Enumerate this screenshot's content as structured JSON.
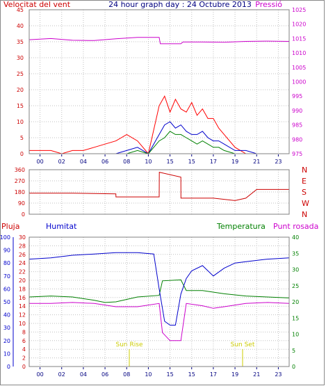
{
  "chart_data": [
    {
      "type": "line",
      "title": "24 hour graph day : 24 Octubre 2013",
      "ylabel_left": "Velocitat del vent",
      "ylabel_right": "Pressió",
      "left_ticks": [
        0,
        5,
        10,
        15,
        20,
        25,
        30,
        35,
        40,
        45
      ],
      "right_ticks": [
        975,
        980,
        985,
        990,
        995,
        1000,
        1005,
        1010,
        1015,
        1020,
        1025
      ],
      "ylim_left": [
        0,
        45
      ],
      "ylim_right": [
        975,
        1025
      ],
      "x_ticks": [
        "00",
        "02",
        "04",
        "06",
        "08",
        "10",
        "15",
        "15",
        "17",
        "19",
        "21",
        "23"
      ],
      "series": [
        {
          "name": "Pressió",
          "color": "#cc00cc",
          "x": [
            0,
            2,
            4,
            6,
            8,
            10,
            12,
            12.1,
            14,
            14.2,
            16,
            18,
            20,
            22,
            24
          ],
          "values": [
            1014.6,
            1015.0,
            1014.4,
            1014.3,
            1014.9,
            1015.4,
            1015.4,
            1013.2,
            1013.2,
            1013.8,
            1013.8,
            1013.7,
            1014.0,
            1014.1,
            1014.0
          ]
        },
        {
          "color": "#ff0000",
          "x": [
            0,
            1,
            2,
            3,
            4,
            5,
            6,
            7,
            8,
            9,
            10,
            11,
            12,
            12.5,
            13,
            13.5,
            14,
            14.5,
            15,
            15.5,
            16,
            16.5,
            17,
            17.5,
            18,
            19,
            20,
            21,
            22,
            23,
            24
          ],
          "values": [
            1,
            1,
            1,
            0,
            1,
            1,
            2,
            3,
            4,
            6,
            4,
            0,
            15,
            18,
            13,
            17,
            14,
            13,
            16,
            12,
            14,
            11,
            11,
            8,
            6,
            2,
            0,
            0,
            0,
            0,
            0
          ]
        },
        {
          "color": "#0000cc",
          "x": [
            0,
            8,
            9,
            10,
            11,
            12,
            12.5,
            13,
            13.5,
            14,
            14.5,
            15,
            15.5,
            16,
            16.5,
            17,
            17.5,
            18,
            19,
            20,
            21,
            24
          ],
          "values": [
            0,
            0,
            1,
            2,
            0,
            6,
            9,
            10,
            8,
            9,
            7,
            6,
            6,
            7,
            5,
            4,
            4,
            3,
            1,
            1,
            0,
            0
          ]
        },
        {
          "color": "#008000",
          "x": [
            0,
            8,
            9,
            10,
            11,
            12,
            12.5,
            13,
            13.5,
            14,
            14.5,
            15,
            15.5,
            16,
            16.5,
            17,
            17.5,
            18,
            19,
            20,
            24
          ],
          "values": [
            0,
            0,
            0,
            1,
            0,
            4,
            5,
            7,
            6,
            6,
            5,
            4,
            3,
            4,
            3,
            2,
            2,
            1,
            0,
            0,
            0
          ]
        }
      ]
    },
    {
      "type": "line",
      "ylabels_right": [
        "N",
        "W",
        "S",
        "E",
        "N"
      ],
      "ticks": [
        0,
        90,
        180,
        270,
        360
      ],
      "ylim": [
        0,
        360
      ],
      "series": [
        {
          "color": "#cc0000",
          "x": [
            0,
            4,
            8,
            8.01,
            11,
            12,
            12.01,
            14,
            14.01,
            17,
            19,
            20,
            21,
            21.01,
            24
          ],
          "values": [
            170,
            170,
            165,
            140,
            140,
            140,
            340,
            300,
            130,
            130,
            110,
            130,
            200,
            200,
            200
          ]
        }
      ]
    },
    {
      "type": "line",
      "legend": [
        "Pluja",
        "Humitat",
        "Temperatura",
        "Punt rosada"
      ],
      "pluja_ticks": [
        0,
        2,
        4,
        6,
        8,
        10,
        12,
        14,
        16,
        18,
        20,
        22,
        24,
        26,
        28,
        30
      ],
      "humitat_ticks": [
        0,
        10,
        20,
        30,
        40,
        50,
        60,
        70,
        80,
        90,
        100
      ],
      "temp_ticks": [
        0,
        5,
        10,
        15,
        20,
        25,
        30,
        35,
        40
      ],
      "ylim_humitat": [
        0,
        100
      ],
      "ylim_temp": [
        0,
        40
      ],
      "annotations": [
        "Sun Rise",
        "Sun Set"
      ],
      "x_ticks": [
        "00",
        "02",
        "04",
        "06",
        "08",
        "10",
        "15",
        "15",
        "17",
        "19",
        "21",
        "23"
      ],
      "series": [
        {
          "name": "Humitat",
          "color": "#0000cc",
          "x": [
            0,
            2,
            4,
            6,
            8,
            10,
            11.5,
            12,
            12.5,
            13,
            13.5,
            14,
            14.5,
            15,
            16,
            17,
            18,
            19,
            20,
            22,
            24
          ],
          "values": [
            83,
            84,
            86,
            87,
            88,
            88,
            87,
            60,
            35,
            32,
            32,
            56,
            68,
            74,
            78,
            70,
            76,
            80,
            81,
            83,
            84
          ]
        },
        {
          "name": "Temperatura",
          "color": "#008000",
          "x": [
            0,
            2,
            4,
            6,
            7,
            8,
            10,
            12,
            12.3,
            14,
            14.5,
            16,
            18,
            20,
            22,
            24
          ],
          "values": [
            21.5,
            21.8,
            21.5,
            20.5,
            19.8,
            20,
            21.5,
            22,
            26.5,
            26.8,
            23.5,
            23.5,
            22.5,
            21.8,
            21.5,
            21.2
          ]
        },
        {
          "name": "Punt rosada",
          "color": "#cc00cc",
          "x": [
            0,
            2,
            4,
            6,
            8,
            10,
            12,
            12.3,
            13,
            14,
            14.5,
            16,
            17,
            18,
            20,
            22,
            24
          ],
          "values": [
            19.5,
            19.5,
            19.8,
            19.5,
            18.5,
            18.5,
            19.5,
            10.5,
            8.0,
            8.0,
            19.5,
            18.8,
            18,
            18.5,
            19.5,
            19.8,
            19.5
          ]
        }
      ]
    }
  ]
}
